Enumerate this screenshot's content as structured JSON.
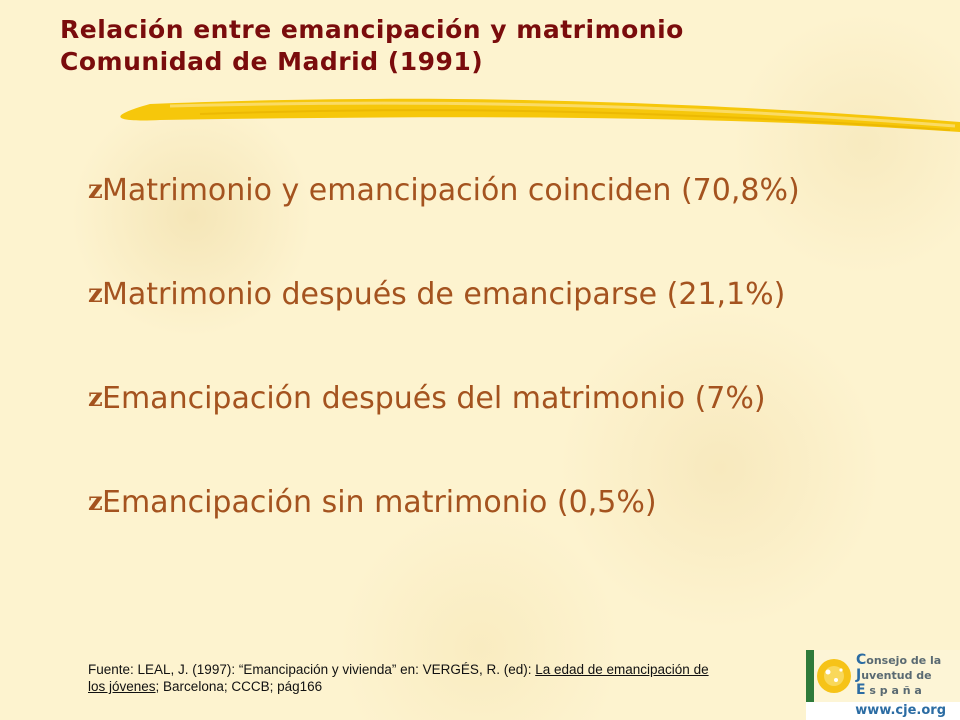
{
  "slide": {
    "title_line1": "Relación entre emancipación y matrimonio",
    "title_line2": "Comunidad de Madrid (1991)",
    "bullet_marker": "z",
    "bullets": [
      "Matrimonio y emancipación coinciden (70,8%)",
      "Matrimonio después de emanciparse (21,1%)",
      "Emancipación después del matrimonio (7%)",
      "Emancipación sin matrimonio (0,5%)"
    ],
    "source": {
      "prefix": "Fuente: LEAL, J. (1997): “Emancipación y vivienda” en: VERGÉS, R. (ed): ",
      "book_title": "La edad de emancipación de los jóvenes",
      "suffix": "; Barcelona; CCCB; pág166"
    },
    "logo": {
      "line1_cap": "C",
      "line1_rest": "onsejo de la",
      "line2_cap": "J",
      "line2_rest": "uventud de",
      "line3_cap": "E",
      "line3_rest": " s p a ñ a",
      "url": "www.cje.org"
    }
  },
  "colors": {
    "title": "#7a0c0c",
    "bullets": "#a4531f",
    "stroke": "#f5c400",
    "background": "#fdf3cf",
    "logo_blue": "#2b6ca3"
  }
}
